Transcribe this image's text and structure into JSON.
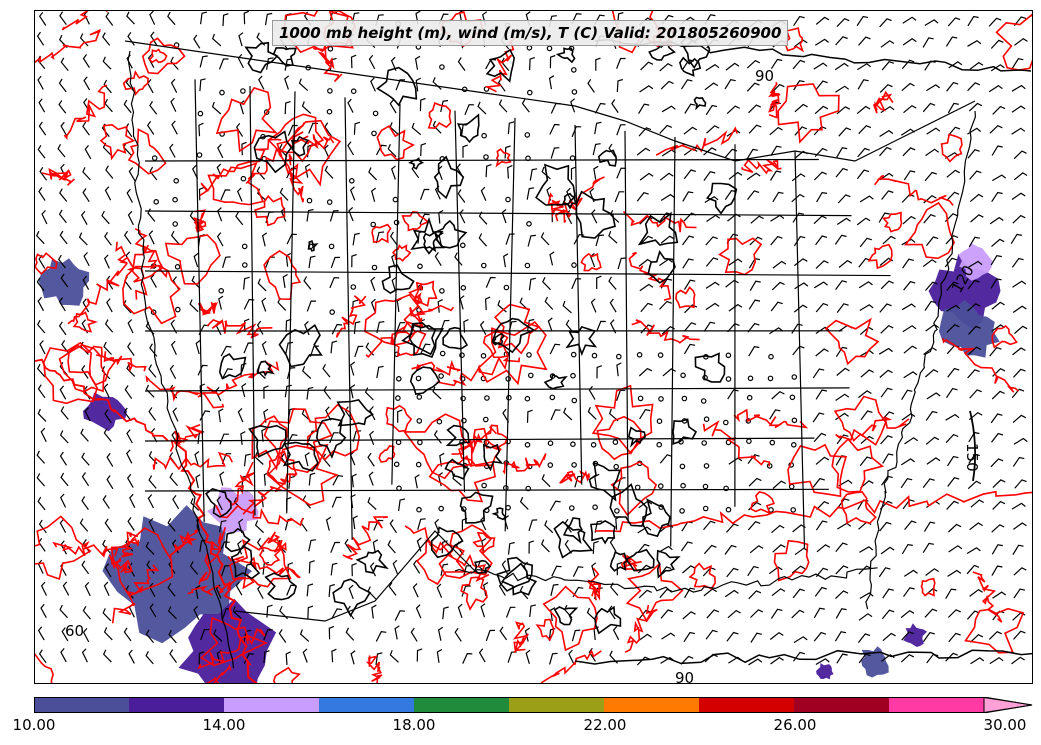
{
  "map": {
    "title": "1000 mb height (m), wind (m/s), T (C) Valid: 201805260900",
    "contour_labels": [
      {
        "text": "150",
        "rotate": 90
      },
      {
        "text": "120",
        "rotate": -60
      },
      {
        "text": "90",
        "rotate": 0
      },
      {
        "text": "90",
        "rotate": 0
      },
      {
        "text": "60",
        "rotate": 0
      }
    ],
    "colors": {
      "temperature_contour": "#ff0000",
      "height_contour": "#000000",
      "border": "#000000"
    }
  },
  "colorbar": {
    "min": 10,
    "max": 30,
    "step": 2,
    "colors": [
      "#4b4f9a",
      "#4a1e9b",
      "#c99dfb",
      "#3479df",
      "#1f8b3b",
      "#9b9f18",
      "#ff7a00",
      "#d40000",
      "#a00022",
      "#ff3aa4",
      "#ffa0d6"
    ],
    "tick_labels": [
      "10.00",
      "14.00",
      "18.00",
      "22.00",
      "26.00",
      "30.00"
    ]
  }
}
